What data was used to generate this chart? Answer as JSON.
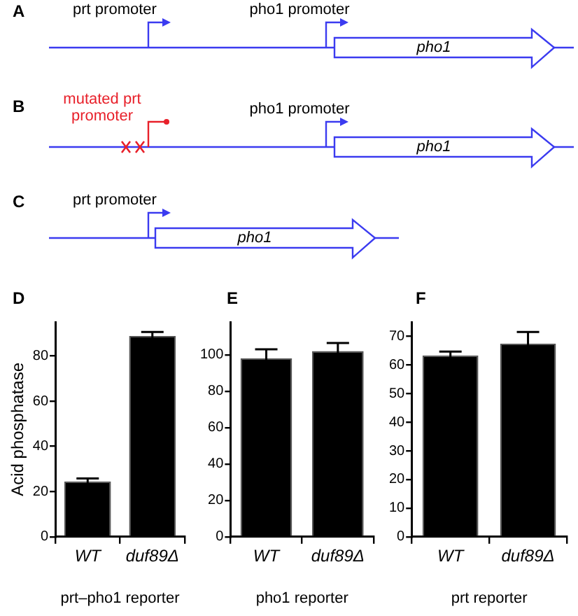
{
  "chart_data": [
    {
      "type": "other",
      "title": "A",
      "annotations": [
        "prt promoter",
        "pho1 promoter",
        "pho1"
      ]
    },
    {
      "type": "other",
      "title": "B",
      "annotations": [
        "mutated prt promoter",
        "pho1 promoter",
        "pho1"
      ]
    },
    {
      "type": "other",
      "title": "C",
      "annotations": [
        "prt promoter",
        "pho1"
      ]
    },
    {
      "type": "bar",
      "title": "D",
      "categories": [
        "WT",
        "duf89Δ"
      ],
      "values": [
        24.5,
        88.8
      ],
      "errors": [
        1.3,
        1.8
      ],
      "color": "#000000",
      "ylim": [
        0,
        95
      ],
      "yticks": [
        0,
        20,
        40,
        60,
        80
      ],
      "ylabel": "Acid phosphatase",
      "xlabel": "prt–pho1 reporter",
      "grid": false,
      "legend": false
    },
    {
      "type": "bar",
      "title": "E",
      "categories": [
        "WT",
        "duf89Δ"
      ],
      "values": [
        98,
        102
      ],
      "errors": [
        5,
        4.5
      ],
      "color": "#000000",
      "ylim": [
        0,
        118
      ],
      "yticks": [
        0,
        20,
        40,
        60,
        80,
        100
      ],
      "xlabel": "pho1 reporter",
      "grid": false,
      "legend": false
    },
    {
      "type": "bar",
      "title": "F",
      "categories": [
        "WT",
        "duf89Δ"
      ],
      "values": [
        63.3,
        67.4
      ],
      "errors": [
        1.4,
        4.1
      ],
      "color": "#000000",
      "ylim": [
        0,
        75
      ],
      "yticks": [
        0,
        10,
        20,
        30,
        40,
        50,
        60,
        70
      ],
      "xlabel": "prt reporter",
      "grid": false,
      "legend": false
    }
  ]
}
